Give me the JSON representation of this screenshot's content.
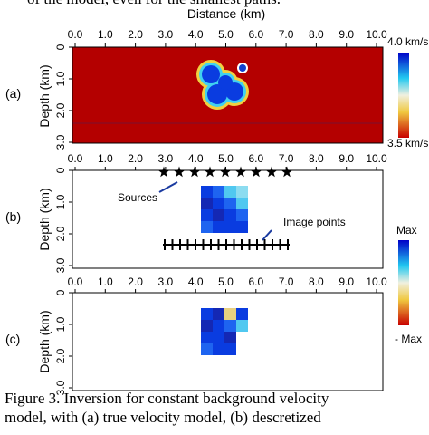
{
  "header": {
    "text": "of the model, even for the smallest paths."
  },
  "figure": {
    "x_label": "Distance (km)",
    "y_label": "Depth (km)",
    "x_ticks": [
      "0.0",
      "1.0",
      "2.0",
      "3.0",
      "4.0",
      "5.0",
      "6.0",
      "7.0",
      "8.0",
      "9.0",
      "10.0"
    ],
    "y_ticks": [
      "0",
      "1.0",
      "2.0",
      "3.0"
    ],
    "panels": [
      {
        "label": "(a)",
        "colorbar": {
          "top": "4.0 km/s",
          "bottom": "3.5 km/s"
        }
      },
      {
        "label": "(b)",
        "annotations": [
          "Sources",
          "Image points"
        ],
        "colorbar": {
          "top": "Max",
          "bottom": "- Max"
        }
      },
      {
        "label": "(c)"
      }
    ]
  },
  "caption": [
    "Figure 3. Inversion for constant background velocity",
    "model, with (a) true velocity model, (b) descretized"
  ]
}
